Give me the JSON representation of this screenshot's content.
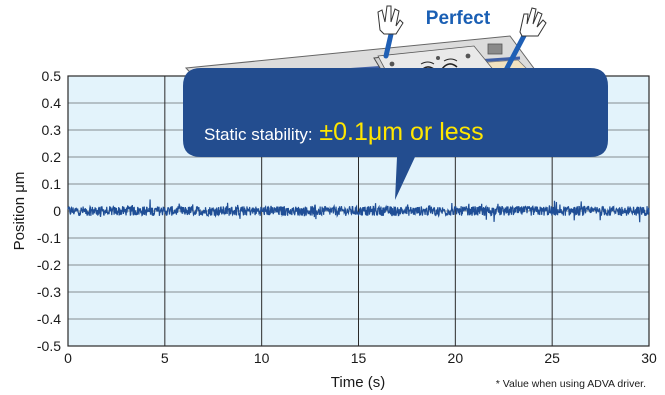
{
  "chart_data": {
    "type": "line",
    "xlabel": "Time (s)",
    "ylabel": "Position μm",
    "xlim": [
      0,
      30
    ],
    "ylim": [
      -0.5,
      0.5
    ],
    "x_ticks": [
      "0",
      "5",
      "10",
      "15",
      "20",
      "25",
      "30"
    ],
    "y_ticks": [
      "0.5",
      "0.4",
      "0.3",
      "0.2",
      "0.1",
      "0",
      "-0.1",
      "-0.2",
      "-0.3",
      "-0.4",
      "-0.5"
    ],
    "grid": true,
    "series": [
      {
        "x": [
          0,
          2.5,
          5,
          7.5,
          10,
          12.5,
          15,
          17.5,
          20,
          22.5,
          25,
          27.5,
          30
        ],
        "values": [
          0,
          0,
          0,
          0,
          0,
          0,
          0,
          0,
          0,
          0,
          0,
          0,
          0
        ],
        "noise_band": 0.03
      }
    ],
    "annotations": {
      "perfect": "Perfect",
      "bubble_prefix": "Static stability: ",
      "bubble_value": "±0.1μm or less",
      "footnote": "* Value when using ADVA driver."
    },
    "colors": {
      "plot_bg": "#e3f3fb",
      "grid": "#2a2a2a",
      "series": "#1f4e96",
      "bubble": "#234d8f",
      "bubble_highlight": "#ffe600",
      "perfect": "#1a5fb4"
    }
  }
}
